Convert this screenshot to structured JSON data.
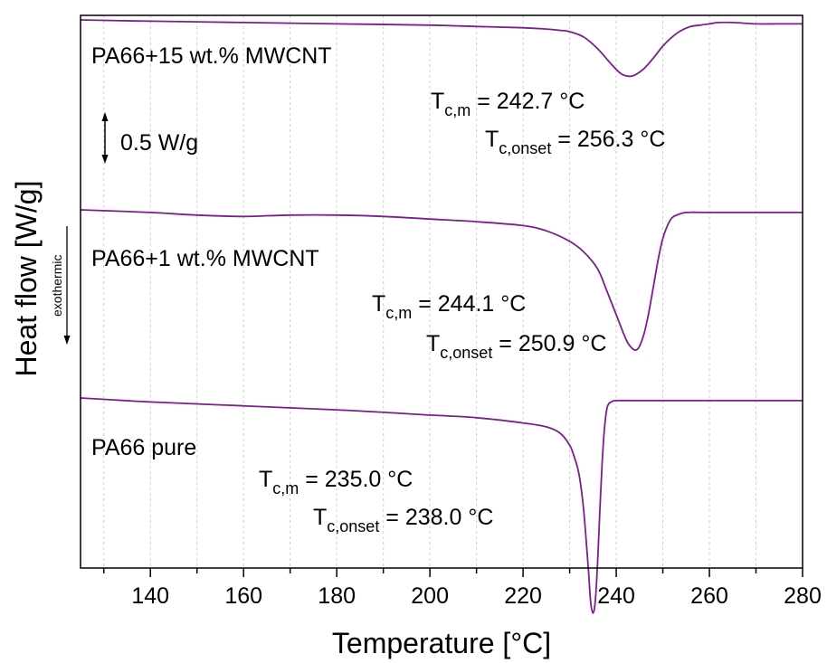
{
  "chart_data": {
    "type": "line",
    "xlabel": "Temperature [°C]",
    "ylabel": "Heat flow [W/g]",
    "xlim": [
      125,
      280
    ],
    "x_ticks": [
      140,
      160,
      180,
      200,
      220,
      240,
      260,
      280
    ],
    "x_minor_step": 10,
    "grid": "vertical dashed at every 10 °C",
    "legend": "none",
    "scale_bar": {
      "label": "0.5 W/g",
      "value": 0.5
    },
    "exotherm_direction": {
      "label": "exothermic",
      "direction": "down"
    },
    "line_color": "#7b1f8c",
    "series": [
      {
        "name": "PA66+15 wt.% MWCNT",
        "annotations": [
          {
            "prefix": "T",
            "sub": "c,m",
            "text": " = 242.7 °C"
          },
          {
            "prefix": "T",
            "sub": "c,onset",
            "text": " = 256.3 °C"
          }
        ],
        "x": [
          125,
          140,
          160,
          180,
          200,
          210,
          220,
          225,
          228,
          230,
          233,
          236,
          239,
          241,
          242.7,
          244,
          246,
          248,
          250,
          252,
          254,
          256,
          258,
          260,
          262,
          265,
          270,
          275,
          280
        ],
        "y": [
          0.0,
          -0.01,
          -0.02,
          -0.03,
          -0.04,
          -0.05,
          -0.06,
          -0.07,
          -0.08,
          -0.09,
          -0.13,
          -0.22,
          -0.34,
          -0.41,
          -0.43,
          -0.42,
          -0.37,
          -0.29,
          -0.2,
          -0.13,
          -0.08,
          -0.05,
          -0.04,
          -0.03,
          -0.02,
          -0.02,
          -0.03,
          -0.03,
          -0.03
        ]
      },
      {
        "name": "PA66+1 wt.% MWCNT",
        "annotations": [
          {
            "prefix": "T",
            "sub": "c,m",
            "text": " = 244.1 °C"
          },
          {
            "prefix": "T",
            "sub": "c,onset",
            "text": " = 250.9 °C"
          }
        ],
        "x": [
          125,
          140,
          150,
          160,
          170,
          180,
          190,
          200,
          210,
          220,
          225,
          230,
          233,
          236,
          238,
          240,
          242,
          243,
          244.1,
          245,
          246,
          247,
          248,
          249,
          250,
          251,
          252,
          253,
          255,
          260,
          270,
          280
        ],
        "y": [
          0.0,
          -0.02,
          -0.04,
          -0.05,
          -0.04,
          -0.04,
          -0.05,
          -0.07,
          -0.09,
          -0.12,
          -0.16,
          -0.24,
          -0.32,
          -0.45,
          -0.62,
          -0.8,
          -0.98,
          -1.04,
          -1.07,
          -1.04,
          -0.94,
          -0.78,
          -0.58,
          -0.38,
          -0.22,
          -0.12,
          -0.06,
          -0.04,
          -0.02,
          -0.02,
          -0.02,
          -0.02
        ]
      },
      {
        "name": "PA66 pure",
        "annotations": [
          {
            "prefix": "T",
            "sub": "c,m",
            "text": " = 235.0 °C"
          },
          {
            "prefix": "T",
            "sub": "c,onset",
            "text": " = 238.0 °C"
          }
        ],
        "x": [
          125,
          140,
          160,
          180,
          200,
          210,
          220,
          225,
          228,
          230,
          231,
          232,
          233,
          234,
          234.5,
          235.0,
          235.5,
          236,
          236.5,
          237,
          237.5,
          238,
          238.5,
          239,
          240,
          245,
          250,
          260,
          270,
          280
        ],
        "y": [
          0.0,
          -0.03,
          -0.06,
          -0.09,
          -0.13,
          -0.15,
          -0.19,
          -0.22,
          -0.27,
          -0.36,
          -0.45,
          -0.58,
          -0.85,
          -1.3,
          -1.55,
          -1.64,
          -1.55,
          -1.25,
          -0.85,
          -0.48,
          -0.22,
          -0.08,
          -0.04,
          -0.03,
          -0.02,
          -0.02,
          -0.02,
          -0.02,
          -0.02,
          -0.02
        ]
      }
    ]
  }
}
